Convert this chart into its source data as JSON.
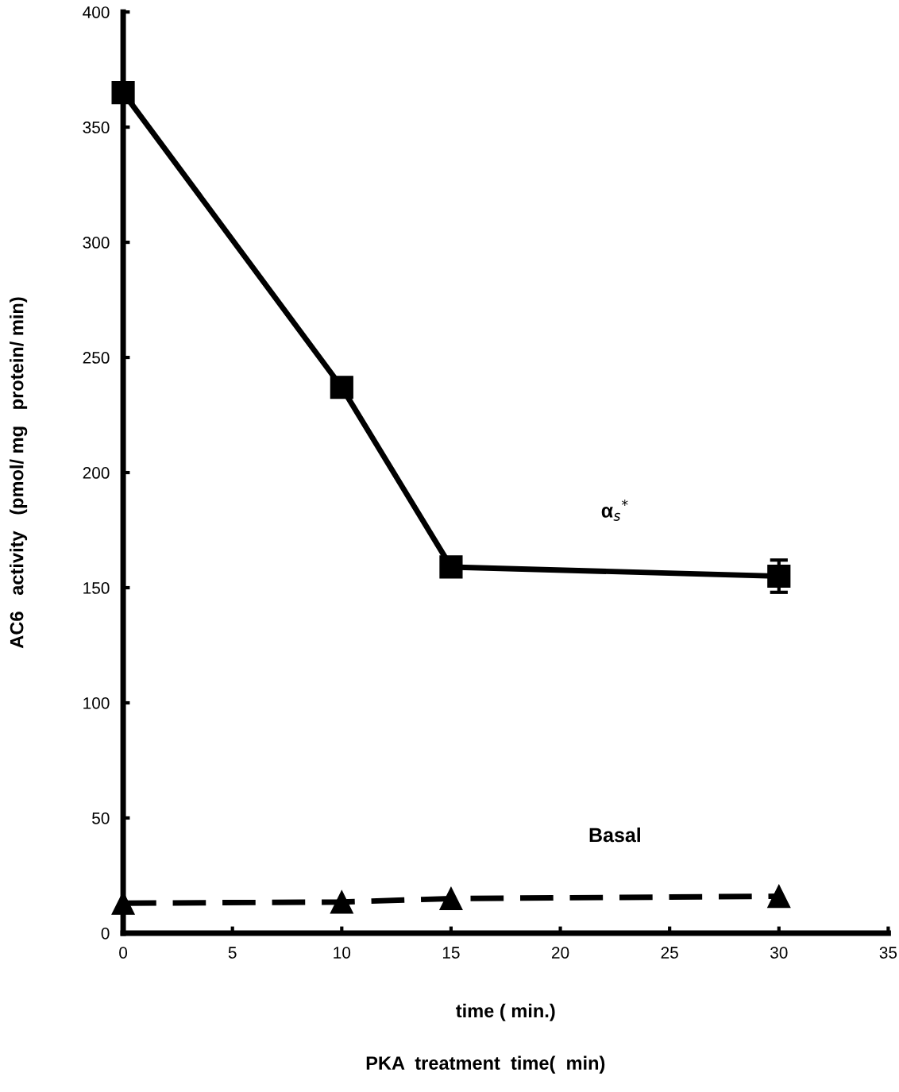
{
  "chart_data": {
    "type": "line",
    "xlabel": "time ( min.)",
    "ylabel": "AC6   activity   (pmol/ mg   protein/ min)",
    "x": [
      0,
      10,
      15,
      30
    ],
    "series": [
      {
        "name": "α$_{s}$$^{*}$",
        "color": "#000000",
        "values": [
          365,
          237,
          159,
          155
        ],
        "errors": [
          null,
          null,
          null,
          7
        ],
        "marker": "square",
        "line_style": "solid"
      },
      {
        "name": "Basal",
        "color": "#000000",
        "values": [
          13,
          13.5,
          15,
          16
        ],
        "marker": "triangle",
        "line_style": "dashed"
      }
    ],
    "xlim": [
      0,
      35
    ],
    "xticks": [
      0,
      5,
      10,
      15,
      20,
      25,
      30,
      35
    ],
    "ylim": [
      0,
      400
    ],
    "yticks": [
      0,
      50,
      100,
      150,
      200,
      250,
      300,
      350,
      400
    ],
    "grid": false,
    "legend": false,
    "annotations": [
      "PKA  treatment  time(  min)"
    ]
  }
}
